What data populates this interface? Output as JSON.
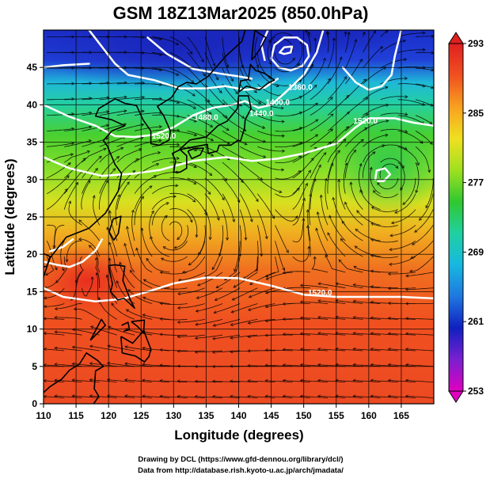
{
  "chart_data": {
    "type": "heatmap",
    "title": "GSM 18Z13Mar2025 (850.0hPa)",
    "xlabel": "Longitude (degrees)",
    "ylabel": "Latitude  (degrees)",
    "xlim": [
      110,
      170
    ],
    "ylim": [
      0,
      50
    ],
    "x_ticks": [
      110,
      115,
      120,
      125,
      130,
      135,
      140,
      145,
      150,
      155,
      160,
      165
    ],
    "y_ticks": [
      0,
      5,
      10,
      15,
      20,
      25,
      30,
      35,
      40,
      45
    ],
    "grid": true,
    "colorbar": {
      "min": 253,
      "max": 293,
      "tick_values": [
        253,
        261,
        269,
        277,
        285,
        293
      ],
      "tick_labels": [
        "253",
        "261",
        "269",
        "277",
        "285",
        "293"
      ],
      "colors": [
        "#e000c0",
        "#7a20d0",
        "#1020c0",
        "#1f78e0",
        "#18b8e0",
        "#20d0a0",
        "#30c830",
        "#a0e020",
        "#f0e020",
        "#f8a020",
        "#f05020",
        "#e02020"
      ]
    },
    "contour_labels": [
      {
        "text": "1520.0",
        "lon": 152.5,
        "lat": 14.5
      },
      {
        "text": "1520.0",
        "lon": 128.5,
        "lat": 35.5
      },
      {
        "text": "1520.0",
        "lon": 159.5,
        "lat": 37.5
      },
      {
        "text": "1400.0",
        "lon": 146.0,
        "lat": 40.0
      },
      {
        "text": "1440.0",
        "lon": 143.5,
        "lat": 38.5
      },
      {
        "text": "1480.0",
        "lon": 135.0,
        "lat": 38.0
      },
      {
        "text": "1360.0",
        "lon": 149.5,
        "lat": 42.0
      }
    ]
  },
  "credits": {
    "line1": "Drawing by DCL (https://www.gfd-dennou.org/library/dcl/)",
    "line2": "Data from http://database.rish.kyoto-u.ac.jp/arch/jmadata/"
  }
}
